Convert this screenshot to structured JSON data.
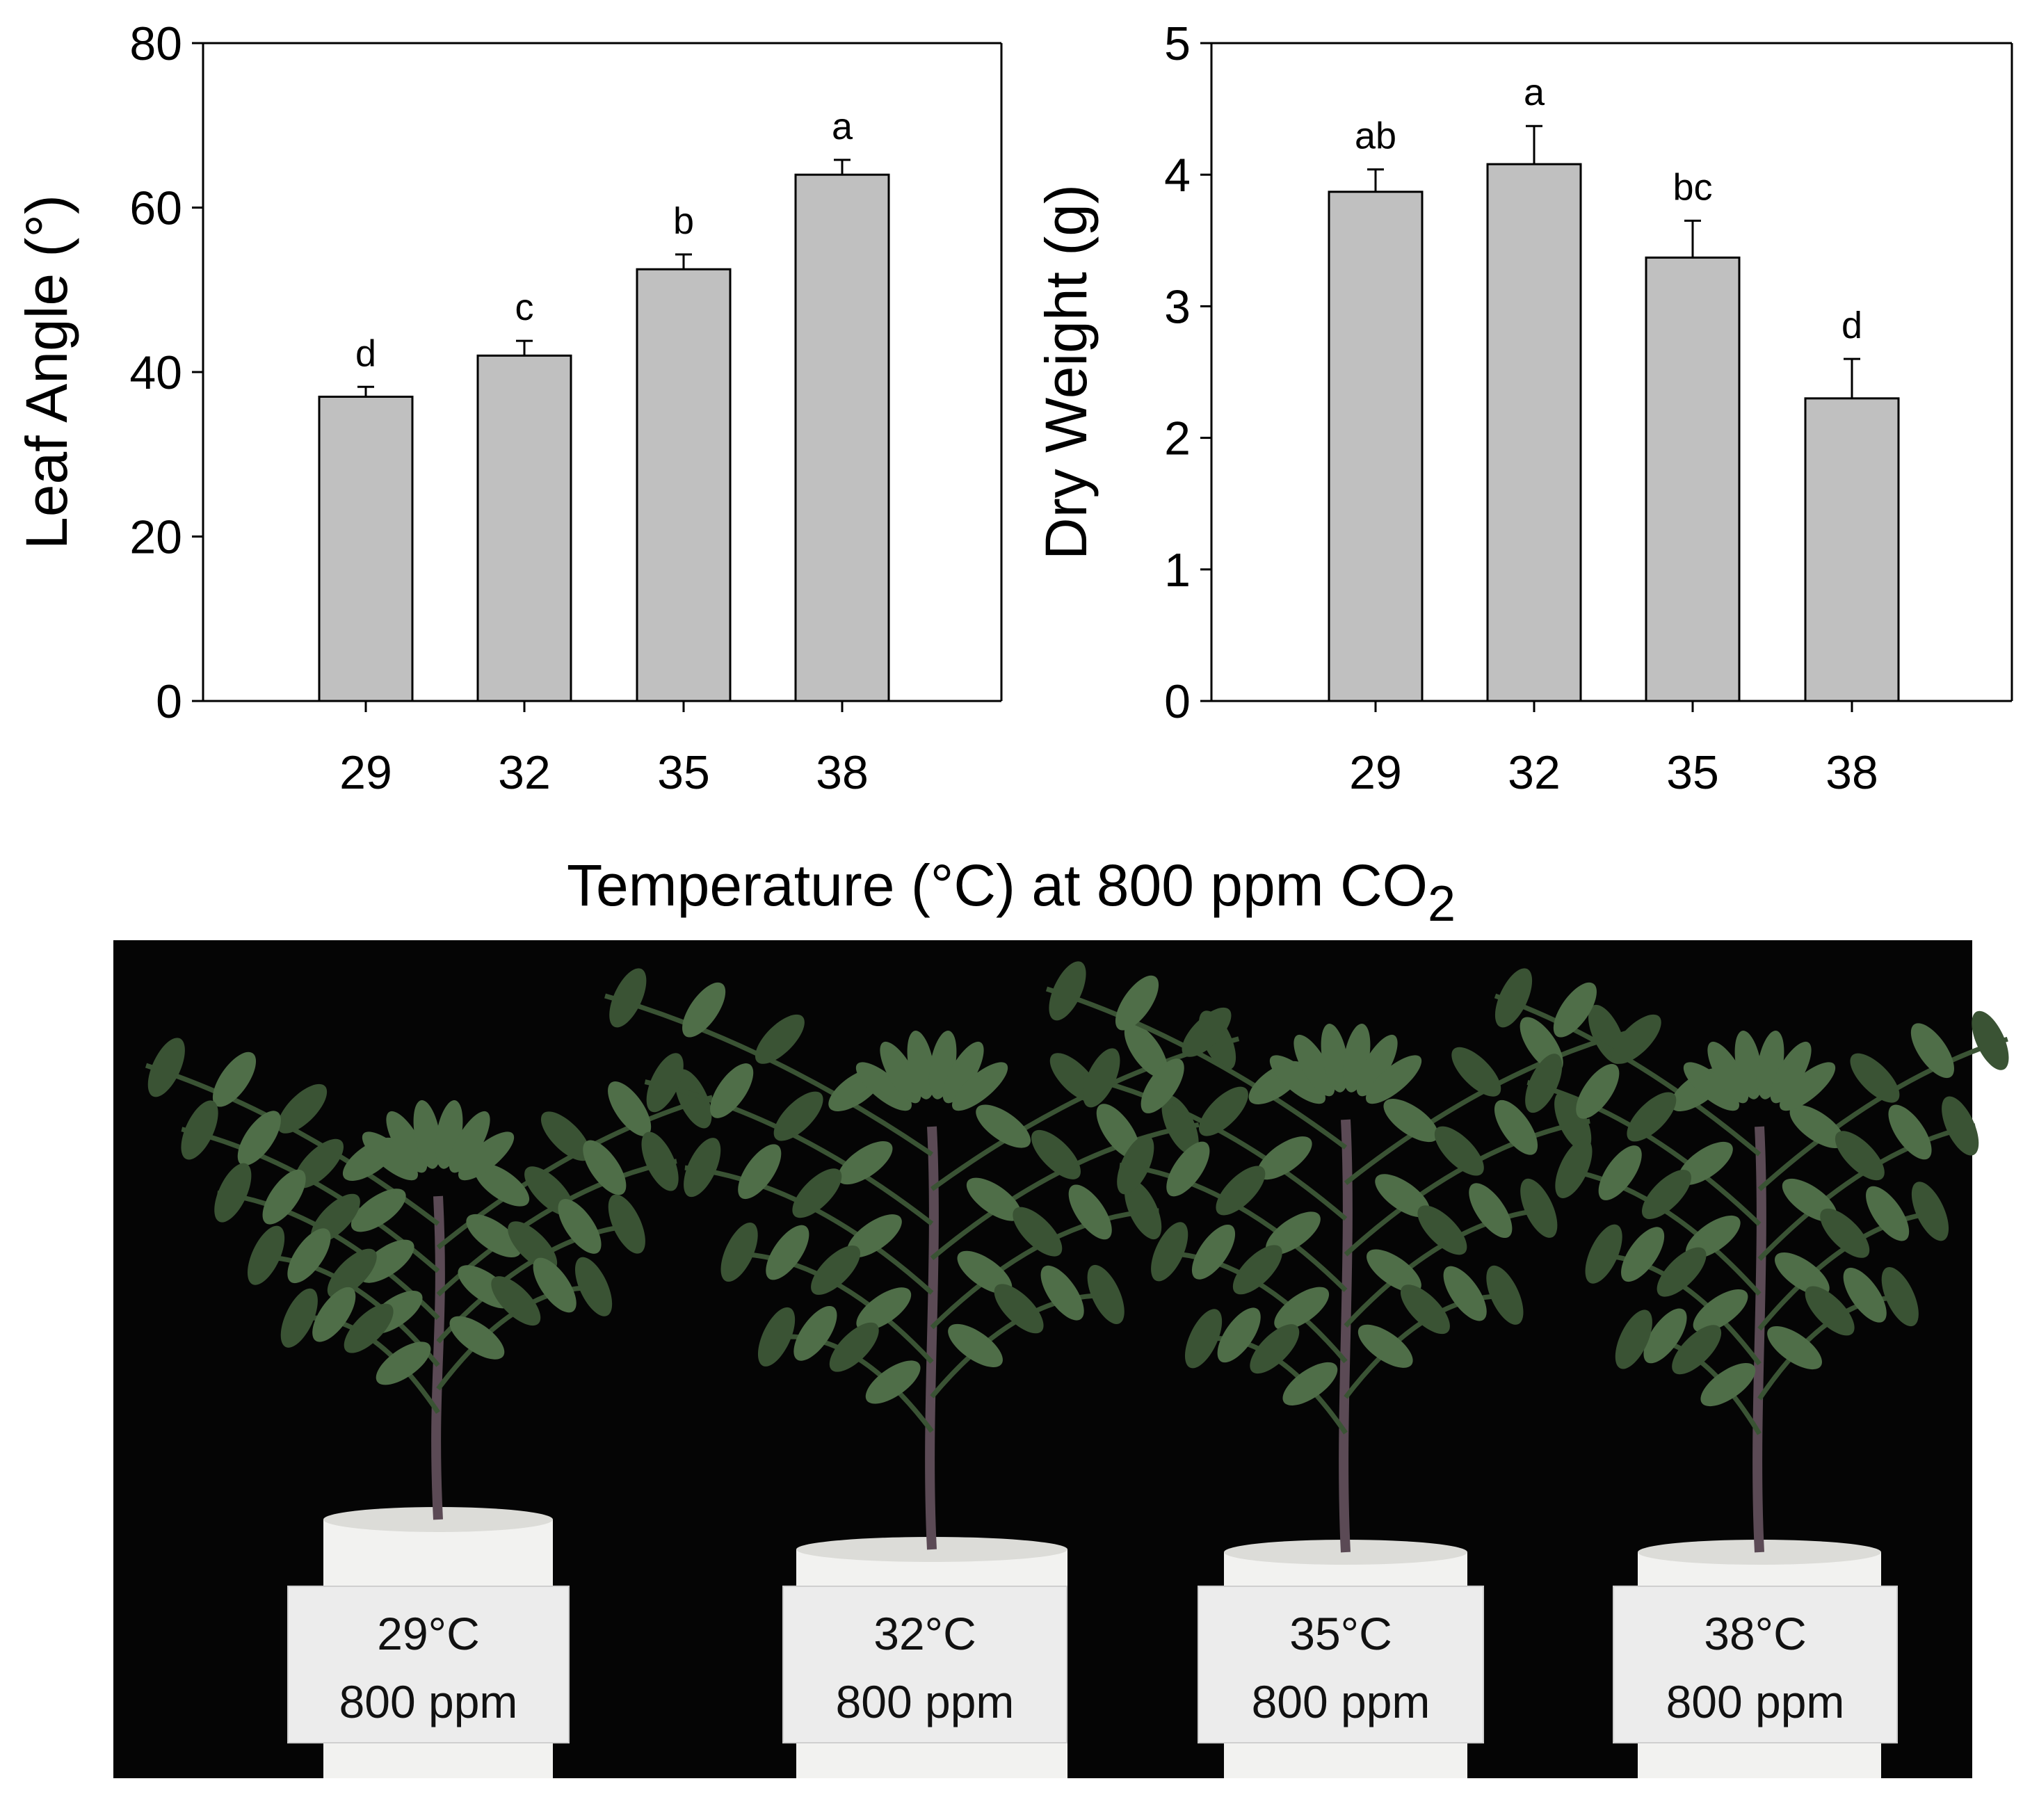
{
  "chart_data": [
    {
      "type": "bar",
      "title": "",
      "xlabel": "Temperature (°C) at 800 ppm CO2",
      "ylabel": "Leaf Angle (°)",
      "categories": [
        "29",
        "32",
        "35",
        "38"
      ],
      "values": [
        37,
        42,
        52.5,
        64
      ],
      "errors": [
        1.2,
        1.8,
        1.8,
        1.8
      ],
      "letters": [
        "d",
        "c",
        "b",
        "a"
      ],
      "ylim": [
        0,
        80
      ],
      "yticks": [
        0,
        20,
        40,
        60,
        80
      ],
      "grid": false
    },
    {
      "type": "bar",
      "title": "",
      "xlabel": "Temperature (°C) at 800 ppm CO2",
      "ylabel": "Dry Weight (g)",
      "categories": [
        "29",
        "32",
        "35",
        "38"
      ],
      "values": [
        3.87,
        4.08,
        3.37,
        2.3
      ],
      "errors": [
        0.17,
        0.29,
        0.28,
        0.3
      ],
      "letters": [
        "ab",
        "a",
        "bc",
        "d"
      ],
      "ylim": [
        0,
        5
      ],
      "yticks": [
        0,
        1,
        2,
        3,
        4,
        5
      ],
      "grid": false
    }
  ],
  "shared_xlabel": {
    "main": "Temperature (°C) at 800 ppm CO",
    "subscript": "2"
  },
  "photo": {
    "labels": [
      {
        "temp": "29°C",
        "ppm": "800 ppm"
      },
      {
        "temp": "32°C",
        "ppm": "800 ppm"
      },
      {
        "temp": "35°C",
        "ppm": "800 ppm"
      },
      {
        "temp": "38°C",
        "ppm": "800 ppm"
      }
    ],
    "colors": {
      "background": "#050505",
      "pot": "#f2f2f0",
      "leaf": "#4f6e48",
      "leaf_dark": "#3a5334",
      "stem": "#5b4a55"
    }
  }
}
